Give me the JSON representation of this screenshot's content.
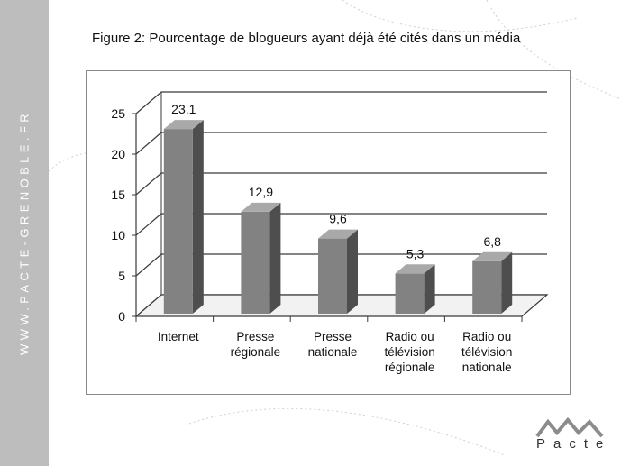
{
  "sidebar": {
    "text": "WWW.PACTE-GRENOBLE.FR"
  },
  "title": "Figure 2: Pourcentage de blogueurs ayant déjà été cités dans un média",
  "logo": {
    "text": "Pacte"
  },
  "colors": {
    "bar_front": "#828282",
    "bar_side": "#4e4e4e",
    "bar_top": "#a9a9a9",
    "sidebar": "#bdbdbd",
    "grid": "#3a3a3a"
  },
  "chart_data": {
    "type": "bar",
    "title": "Figure 2: Pourcentage de blogueurs ayant déjà été cités dans un média",
    "categories": [
      [
        "Internet"
      ],
      [
        "Presse",
        "régionale"
      ],
      [
        "Presse",
        "nationale"
      ],
      [
        "Radio ou",
        "télévision",
        "régionale"
      ],
      [
        "Radio ou",
        "télévision",
        "nationale"
      ]
    ],
    "values": [
      23.1,
      12.9,
      9.6,
      5.3,
      6.8
    ],
    "value_labels": [
      "23,1",
      "12,9",
      "9,6",
      "5,3",
      "6,8"
    ],
    "yticks": [
      "0",
      "5",
      "10",
      "15",
      "20",
      "25"
    ],
    "ylim": [
      0,
      25
    ],
    "grid": true,
    "legend": "none",
    "style": "3d"
  }
}
